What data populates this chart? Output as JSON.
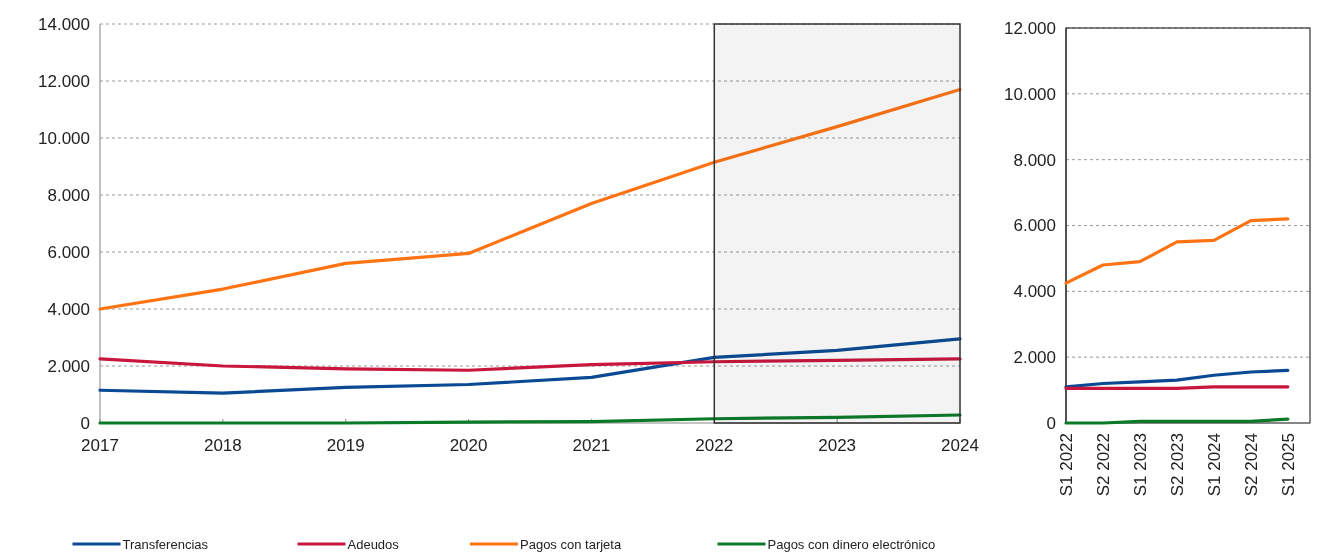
{
  "chart_data": [
    {
      "type": "line",
      "x": [
        2017,
        2018,
        2019,
        2020,
        2021,
        2022,
        2023,
        2024
      ],
      "xlim": [
        2017,
        2024
      ],
      "xticks": [
        2017,
        2018,
        2019,
        2020,
        2021,
        2022,
        2023,
        2024
      ],
      "ylim": [
        0,
        14000
      ],
      "yticks": [
        0,
        {
          "value": 2000,
          "label": "2.000"
        },
        {
          "value": 4000,
          "label": "4.000"
        },
        {
          "value": 6000,
          "label": "6.000"
        },
        {
          "value": 8000,
          "label": "8.000"
        },
        {
          "value": 10000,
          "label": "10.000"
        },
        {
          "value": 12000,
          "label": "12.000"
        },
        {
          "value": 14000,
          "label": "14.000"
        }
      ],
      "grid": "y",
      "legend": "bottom",
      "line_style": "solid",
      "marker": "none",
      "bands": [
        {
          "axis": "x",
          "from": 2022,
          "to": 2024,
          "color": "#333333"
        }
      ],
      "series": [
        {
          "name": "Transferencias",
          "color": "#0a4a94",
          "values": [
            1150,
            1050,
            1250,
            1350,
            1600,
            2300,
            2550,
            2950
          ]
        },
        {
          "name": "Adeudos",
          "color": "#c8163c",
          "values": [
            2250,
            2000,
            1900,
            1850,
            2050,
            2150,
            2200,
            2250
          ]
        },
        {
          "name": "Pagos con tarjeta",
          "color": "#ff7312",
          "values": [
            4000,
            4700,
            5600,
            5950,
            7700,
            9150,
            10400,
            11700
          ]
        },
        {
          "name": "Pagos con dinero electrónico",
          "color": "#0a7a28",
          "values": [
            0,
            0,
            0,
            30,
            50,
            150,
            200,
            280
          ]
        }
      ]
    },
    {
      "type": "line",
      "categories": [
        "S1 2022",
        "S2 2022",
        "S1 2023",
        "S2 2023",
        "S1 2024",
        "S2 2024",
        "S1 2025"
      ],
      "ylim": [
        0,
        12000
      ],
      "yticks": [
        0,
        {
          "value": 2000,
          "label": "2.000"
        },
        {
          "value": 4000,
          "label": "4.000"
        },
        {
          "value": 6000,
          "label": "6.000"
        },
        {
          "value": 8000,
          "label": "8.000"
        },
        {
          "value": 10000,
          "label": "10.000"
        },
        {
          "value": 12000,
          "label": "12.000"
        }
      ],
      "grid": "y",
      "line_style": "solid",
      "marker": "none",
      "series": [
        {
          "color": "#0a4a94",
          "values": [
            1100,
            1200,
            1250,
            1300,
            1450,
            1550,
            1600
          ]
        },
        {
          "color": "#c8163c",
          "values": [
            1050,
            1050,
            1050,
            1050,
            1100,
            1100,
            1100
          ]
        },
        {
          "color": "#ff7312",
          "values": [
            4250,
            4800,
            4900,
            5500,
            5550,
            6150,
            6200
          ]
        },
        {
          "color": "#0a7a28",
          "values": [
            0,
            0,
            50,
            50,
            50,
            50,
            120
          ]
        }
      ]
    }
  ]
}
